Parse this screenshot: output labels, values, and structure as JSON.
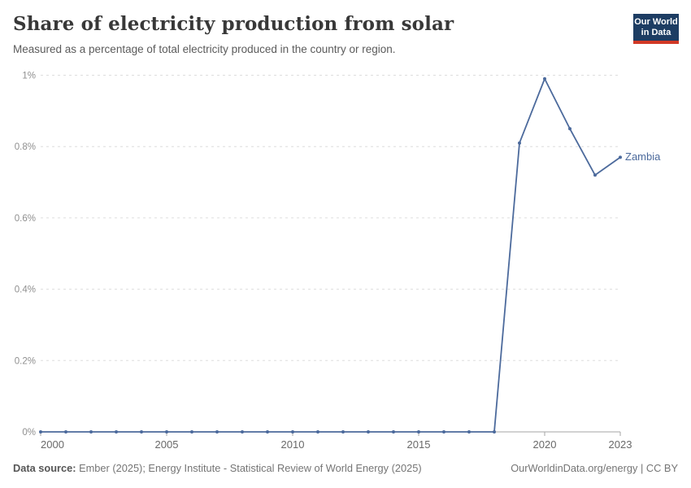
{
  "header": {
    "title": "Share of electricity production from solar",
    "subtitle": "Measured as a percentage of total electricity produced in the country or region."
  },
  "logo": {
    "line1": "Our World",
    "line2": "in Data",
    "bg_color": "#1D3D63",
    "accent_color": "#D13926"
  },
  "chart_data": {
    "type": "line",
    "title": "Share of electricity production from solar",
    "x": [
      2000,
      2001,
      2002,
      2003,
      2004,
      2005,
      2006,
      2007,
      2008,
      2009,
      2010,
      2011,
      2012,
      2013,
      2014,
      2015,
      2016,
      2017,
      2018,
      2019,
      2020,
      2021,
      2022,
      2023
    ],
    "series": [
      {
        "name": "Zambia",
        "values": [
          0,
          0,
          0,
          0,
          0,
          0,
          0,
          0,
          0,
          0,
          0,
          0,
          0,
          0,
          0,
          0,
          0,
          0,
          0,
          0.81,
          0.99,
          0.85,
          0.72,
          0.77
        ]
      }
    ],
    "xlabel": "",
    "ylabel": "",
    "ylim": [
      0,
      1
    ],
    "xticks": [
      2000,
      2005,
      2010,
      2015,
      2020,
      2023
    ],
    "yticks": [
      {
        "value": 1,
        "label": "1%"
      },
      {
        "value": 0.8,
        "label": "0.8%"
      },
      {
        "value": 0.6,
        "label": "0.6%"
      },
      {
        "value": 0.4,
        "label": "0.4%"
      },
      {
        "value": 0.2,
        "label": "0.2%"
      },
      {
        "value": 0,
        "label": "0%"
      }
    ],
    "grid": "horizontal-dashed",
    "legend_position": "end-of-line-label",
    "colors": {
      "line": "#4C6A9C",
      "grid": "#DDDDDD",
      "axis": "#A5A5A5",
      "ytick_label": "#8F8F8F",
      "xtick_label": "#696969"
    }
  },
  "footer": {
    "data_source_label": "Data source:",
    "data_source_text": " Ember (2025); Energy Institute - Statistical Review of World Energy (2025)",
    "right_text": "OurWorldinData.org/energy | CC BY"
  }
}
